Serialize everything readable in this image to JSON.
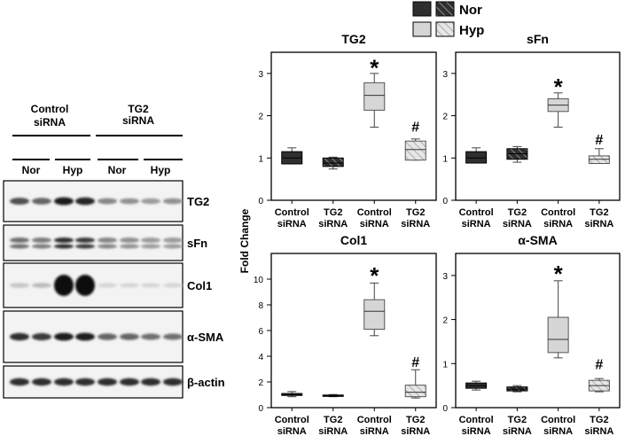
{
  "legend": {
    "items": [
      {
        "label": "Nor",
        "solid_color": "#2f2f2f",
        "hatch_color": "#5a5a5a"
      },
      {
        "label": "Hyp",
        "solid_color": "#d6d6d6",
        "hatch_color": "#d6d6d6"
      }
    ]
  },
  "blot": {
    "groups": [
      {
        "label_line1": "Control",
        "label_line2": "siRNA"
      },
      {
        "label_line1": "TG2",
        "label_line2": "siRNA"
      }
    ],
    "subgroups": [
      "Nor",
      "Hyp",
      "Nor",
      "Hyp"
    ],
    "rows": [
      {
        "label": "TG2",
        "intensity": [
          0.7,
          0.6,
          0.95,
          0.9,
          0.45,
          0.4,
          0.35,
          0.4
        ]
      },
      {
        "label": "sFn",
        "intensity": [
          0.55,
          0.5,
          0.85,
          0.8,
          0.45,
          0.4,
          0.35,
          0.35
        ]
      },
      {
        "label": "Col1",
        "intensity": [
          0.15,
          0.2,
          1.0,
          1.0,
          0.08,
          0.08,
          0.08,
          0.08
        ]
      },
      {
        "label": "α-SMA",
        "intensity": [
          0.85,
          0.8,
          0.95,
          0.95,
          0.6,
          0.6,
          0.55,
          0.55
        ]
      },
      {
        "label": "β-actin",
        "intensity": [
          0.85,
          0.85,
          0.85,
          0.85,
          0.85,
          0.85,
          0.85,
          0.85
        ]
      }
    ]
  },
  "y_axis_label": "Fold Change",
  "chart_data": [
    {
      "type": "box",
      "title": "TG2",
      "categories": [
        "Control siRNA",
        "TG2 siRNA",
        "Control siRNA",
        "TG2 siRNA"
      ],
      "ylim": [
        0,
        3.5
      ],
      "yticks": [
        0,
        1,
        2,
        3
      ],
      "boxes": [
        {
          "whisker_low": 0.86,
          "q1": 0.86,
          "median": 1.0,
          "q3": 1.15,
          "whisker_high": 1.24,
          "group": "Nor",
          "fill": "solid"
        },
        {
          "whisker_low": 0.74,
          "q1": 0.8,
          "median": 0.88,
          "q3": 1.0,
          "whisker_high": 1.02,
          "group": "Nor",
          "fill": "hatch"
        },
        {
          "whisker_low": 1.73,
          "q1": 2.13,
          "median": 2.48,
          "q3": 2.78,
          "whisker_high": 3.0,
          "group": "Hyp",
          "fill": "solid"
        },
        {
          "whisker_low": 0.95,
          "q1": 0.95,
          "median": 1.2,
          "q3": 1.4,
          "whisker_high": 1.45,
          "group": "Hyp",
          "fill": "hatch"
        }
      ],
      "annotations": [
        {
          "index": 2,
          "text": "*",
          "y": 3.2
        },
        {
          "index": 3,
          "text": "#",
          "y": 1.75
        }
      ]
    },
    {
      "type": "box",
      "title": "sFn",
      "categories": [
        "Control siRNA",
        "TG2 siRNA",
        "Control siRNA",
        "TG2 siRNA"
      ],
      "ylim": [
        0,
        3.5
      ],
      "yticks": [
        0,
        1,
        2,
        3
      ],
      "boxes": [
        {
          "whisker_low": 0.88,
          "q1": 0.88,
          "median": 1.0,
          "q3": 1.15,
          "whisker_high": 1.24,
          "group": "Nor",
          "fill": "solid"
        },
        {
          "whisker_low": 0.9,
          "q1": 0.97,
          "median": 1.1,
          "q3": 1.22,
          "whisker_high": 1.27,
          "group": "Nor",
          "fill": "hatch"
        },
        {
          "whisker_low": 1.73,
          "q1": 2.1,
          "median": 2.25,
          "q3": 2.4,
          "whisker_high": 2.54,
          "group": "Hyp",
          "fill": "solid"
        },
        {
          "whisker_low": 0.87,
          "q1": 0.87,
          "median": 0.97,
          "q3": 1.05,
          "whisker_high": 1.22,
          "group": "Hyp",
          "fill": "hatch"
        }
      ],
      "annotations": [
        {
          "index": 2,
          "text": "*",
          "y": 2.75
        },
        {
          "index": 3,
          "text": "#",
          "y": 1.45
        }
      ]
    },
    {
      "type": "box",
      "title": "Col1",
      "categories": [
        "Control siRNA",
        "TG2 siRNA",
        "Control siRNA",
        "TG2 siRNA"
      ],
      "ylim": [
        0,
        12
      ],
      "yticks": [
        0,
        2,
        4,
        6,
        8,
        10
      ],
      "boxes": [
        {
          "whisker_low": 0.85,
          "q1": 0.95,
          "median": 1.0,
          "q3": 1.1,
          "whisker_high": 1.25,
          "group": "Nor",
          "fill": "solid"
        },
        {
          "whisker_low": 0.85,
          "q1": 0.88,
          "median": 0.92,
          "q3": 0.98,
          "whisker_high": 1.02,
          "group": "Nor",
          "fill": "hatch"
        },
        {
          "whisker_low": 5.6,
          "q1": 6.1,
          "median": 7.5,
          "q3": 8.4,
          "whisker_high": 9.7,
          "group": "Hyp",
          "fill": "solid"
        },
        {
          "whisker_low": 0.75,
          "q1": 0.85,
          "median": 1.2,
          "q3": 1.75,
          "whisker_high": 2.95,
          "group": "Hyp",
          "fill": "hatch"
        }
      ],
      "annotations": [
        {
          "index": 2,
          "text": "*",
          "y": 10.5
        },
        {
          "index": 3,
          "text": "#",
          "y": 3.6
        }
      ]
    },
    {
      "type": "box",
      "title": "α-SMA",
      "categories": [
        "Control siRNA",
        "TG2 siRNA",
        "Control siRNA",
        "TG2 siRNA"
      ],
      "ylim": [
        0,
        3.5
      ],
      "yticks": [
        0,
        1,
        2,
        3
      ],
      "boxes": [
        {
          "whisker_low": 0.4,
          "q1": 0.44,
          "median": 0.5,
          "q3": 0.56,
          "whisker_high": 0.6,
          "group": "Nor",
          "fill": "solid"
        },
        {
          "whisker_low": 0.36,
          "q1": 0.38,
          "median": 0.42,
          "q3": 0.47,
          "whisker_high": 0.5,
          "group": "Nor",
          "fill": "hatch"
        },
        {
          "whisker_low": 1.13,
          "q1": 1.25,
          "median": 1.55,
          "q3": 2.05,
          "whisker_high": 2.88,
          "group": "Hyp",
          "fill": "solid"
        },
        {
          "whisker_low": 0.36,
          "q1": 0.38,
          "median": 0.5,
          "q3": 0.62,
          "whisker_high": 0.66,
          "group": "Hyp",
          "fill": "hatch"
        }
      ],
      "annotations": [
        {
          "index": 2,
          "text": "*",
          "y": 3.1
        },
        {
          "index": 3,
          "text": "#",
          "y": 1.0
        }
      ]
    }
  ]
}
